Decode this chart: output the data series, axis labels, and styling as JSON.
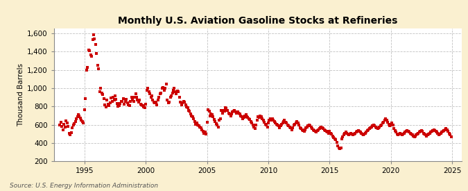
{
  "title": "Monthly U.S. Aviation Gasoline Stocks at Refineries",
  "ylabel": "Thousand Barrels",
  "source_text": "Source: U.S. Energy Information Administration",
  "fig_bg_color": "#FAF0D0",
  "plot_bg_color": "#FFFFFF",
  "marker_color": "#CC0000",
  "marker": "s",
  "markersize": 2.5,
  "ylim": [
    200,
    1650
  ],
  "yticks": [
    200,
    400,
    600,
    800,
    1000,
    1200,
    1400,
    1600
  ],
  "ytick_labels": [
    "200",
    "400",
    "600",
    "800",
    "1,000",
    "1,200",
    "1,400",
    "1,600"
  ],
  "xlim_start": 1992.5,
  "xlim_end": 2025.8,
  "xticks": [
    1995,
    2000,
    2005,
    2010,
    2015,
    2020,
    2025
  ],
  "grid_color": "#999999",
  "grid_linestyle": "--",
  "grid_alpha": 0.6,
  "title_fontsize": 10,
  "label_fontsize": 7.5,
  "tick_fontsize": 7.5,
  "source_fontsize": 6.5,
  "raw_data": [
    [
      1993.0,
      598
    ],
    [
      1993.08,
      625
    ],
    [
      1993.17,
      582
    ],
    [
      1993.25,
      548
    ],
    [
      1993.33,
      605
    ],
    [
      1993.42,
      572
    ],
    [
      1993.5,
      641
    ],
    [
      1993.58,
      618
    ],
    [
      1993.67,
      585
    ],
    [
      1993.75,
      505
    ],
    [
      1993.83,
      488
    ],
    [
      1993.92,
      512
    ],
    [
      1994.0,
      568
    ],
    [
      1994.08,
      598
    ],
    [
      1994.17,
      615
    ],
    [
      1994.25,
      638
    ],
    [
      1994.33,
      668
    ],
    [
      1994.42,
      688
    ],
    [
      1994.5,
      712
    ],
    [
      1994.58,
      695
    ],
    [
      1994.67,
      672
    ],
    [
      1994.75,
      652
    ],
    [
      1994.83,
      638
    ],
    [
      1994.92,
      618
    ],
    [
      1995.0,
      762
    ],
    [
      1995.08,
      882
    ],
    [
      1995.17,
      1195
    ],
    [
      1995.25,
      1228
    ],
    [
      1995.33,
      1418
    ],
    [
      1995.42,
      1408
    ],
    [
      1995.5,
      1362
    ],
    [
      1995.58,
      1345
    ],
    [
      1995.67,
      1528
    ],
    [
      1995.75,
      1582
    ],
    [
      1995.83,
      1538
    ],
    [
      1995.92,
      1475
    ],
    [
      1996.0,
      1378
    ],
    [
      1996.08,
      1248
    ],
    [
      1996.17,
      1215
    ],
    [
      1996.25,
      958
    ],
    [
      1996.33,
      998
    ],
    [
      1996.42,
      948
    ],
    [
      1996.5,
      928
    ],
    [
      1996.58,
      888
    ],
    [
      1996.67,
      818
    ],
    [
      1996.75,
      798
    ],
    [
      1996.83,
      868
    ],
    [
      1996.92,
      828
    ],
    [
      1997.0,
      808
    ],
    [
      1997.08,
      842
    ],
    [
      1997.17,
      892
    ],
    [
      1997.25,
      852
    ],
    [
      1997.33,
      898
    ],
    [
      1997.42,
      868
    ],
    [
      1997.5,
      918
    ],
    [
      1997.58,
      878
    ],
    [
      1997.67,
      832
    ],
    [
      1997.75,
      802
    ],
    [
      1997.83,
      812
    ],
    [
      1997.92,
      832
    ],
    [
      1998.0,
      858
    ],
    [
      1998.08,
      852
    ],
    [
      1998.17,
      888
    ],
    [
      1998.25,
      822
    ],
    [
      1998.33,
      852
    ],
    [
      1998.42,
      878
    ],
    [
      1998.5,
      842
    ],
    [
      1998.58,
      818
    ],
    [
      1998.67,
      812
    ],
    [
      1998.75,
      858
    ],
    [
      1998.83,
      898
    ],
    [
      1998.92,
      868
    ],
    [
      1999.0,
      858
    ],
    [
      1999.08,
      898
    ],
    [
      1999.17,
      938
    ],
    [
      1999.25,
      898
    ],
    [
      1999.33,
      868
    ],
    [
      1999.42,
      848
    ],
    [
      1999.5,
      868
    ],
    [
      1999.58,
      828
    ],
    [
      1999.67,
      818
    ],
    [
      1999.75,
      808
    ],
    [
      1999.83,
      798
    ],
    [
      1999.92,
      788
    ],
    [
      2000.0,
      828
    ],
    [
      2000.08,
      978
    ],
    [
      2000.17,
      998
    ],
    [
      2000.25,
      958
    ],
    [
      2000.33,
      938
    ],
    [
      2000.42,
      898
    ],
    [
      2000.5,
      918
    ],
    [
      2000.58,
      868
    ],
    [
      2000.67,
      848
    ],
    [
      2000.75,
      838
    ],
    [
      2000.83,
      848
    ],
    [
      2000.92,
      818
    ],
    [
      2001.0,
      868
    ],
    [
      2001.08,
      898
    ],
    [
      2001.17,
      938
    ],
    [
      2001.25,
      948
    ],
    [
      2001.33,
      998
    ],
    [
      2001.42,
      1008
    ],
    [
      2001.5,
      978
    ],
    [
      2001.58,
      998
    ],
    [
      2001.67,
      1048
    ],
    [
      2001.75,
      868
    ],
    [
      2001.83,
      838
    ],
    [
      2001.92,
      848
    ],
    [
      2002.0,
      898
    ],
    [
      2002.08,
      918
    ],
    [
      2002.17,
      948
    ],
    [
      2002.25,
      978
    ],
    [
      2002.33,
      998
    ],
    [
      2002.42,
      958
    ],
    [
      2002.5,
      938
    ],
    [
      2002.58,
      968
    ],
    [
      2002.67,
      958
    ],
    [
      2002.75,
      898
    ],
    [
      2002.83,
      848
    ],
    [
      2002.92,
      818
    ],
    [
      2003.0,
      838
    ],
    [
      2003.08,
      858
    ],
    [
      2003.17,
      848
    ],
    [
      2003.25,
      818
    ],
    [
      2003.33,
      798
    ],
    [
      2003.42,
      788
    ],
    [
      2003.5,
      758
    ],
    [
      2003.58,
      748
    ],
    [
      2003.67,
      718
    ],
    [
      2003.75,
      698
    ],
    [
      2003.83,
      688
    ],
    [
      2003.92,
      668
    ],
    [
      2004.0,
      638
    ],
    [
      2004.08,
      608
    ],
    [
      2004.17,
      618
    ],
    [
      2004.25,
      598
    ],
    [
      2004.33,
      588
    ],
    [
      2004.42,
      578
    ],
    [
      2004.5,
      568
    ],
    [
      2004.58,
      548
    ],
    [
      2004.67,
      528
    ],
    [
      2004.75,
      508
    ],
    [
      2004.83,
      518
    ],
    [
      2004.92,
      498
    ],
    [
      2005.0,
      628
    ],
    [
      2005.08,
      768
    ],
    [
      2005.17,
      748
    ],
    [
      2005.25,
      698
    ],
    [
      2005.33,
      722
    ],
    [
      2005.42,
      708
    ],
    [
      2005.5,
      688
    ],
    [
      2005.58,
      658
    ],
    [
      2005.67,
      632
    ],
    [
      2005.75,
      612
    ],
    [
      2005.83,
      598
    ],
    [
      2005.92,
      578
    ],
    [
      2006.0,
      648
    ],
    [
      2006.08,
      668
    ],
    [
      2006.17,
      758
    ],
    [
      2006.25,
      728
    ],
    [
      2006.33,
      758
    ],
    [
      2006.42,
      748
    ],
    [
      2006.5,
      788
    ],
    [
      2006.58,
      778
    ],
    [
      2006.67,
      758
    ],
    [
      2006.75,
      728
    ],
    [
      2006.83,
      718
    ],
    [
      2006.92,
      698
    ],
    [
      2007.0,
      718
    ],
    [
      2007.08,
      738
    ],
    [
      2007.17,
      748
    ],
    [
      2007.25,
      758
    ],
    [
      2007.33,
      738
    ],
    [
      2007.42,
      728
    ],
    [
      2007.5,
      738
    ],
    [
      2007.58,
      728
    ],
    [
      2007.67,
      718
    ],
    [
      2007.75,
      698
    ],
    [
      2007.83,
      688
    ],
    [
      2007.92,
      668
    ],
    [
      2008.0,
      678
    ],
    [
      2008.08,
      698
    ],
    [
      2008.17,
      708
    ],
    [
      2008.25,
      688
    ],
    [
      2008.33,
      678
    ],
    [
      2008.42,
      668
    ],
    [
      2008.5,
      658
    ],
    [
      2008.58,
      638
    ],
    [
      2008.67,
      618
    ],
    [
      2008.75,
      598
    ],
    [
      2008.83,
      578
    ],
    [
      2008.92,
      558
    ],
    [
      2009.0,
      598
    ],
    [
      2009.08,
      648
    ],
    [
      2009.17,
      688
    ],
    [
      2009.25,
      678
    ],
    [
      2009.33,
      698
    ],
    [
      2009.42,
      688
    ],
    [
      2009.5,
      668
    ],
    [
      2009.58,
      648
    ],
    [
      2009.67,
      628
    ],
    [
      2009.75,
      608
    ],
    [
      2009.83,
      598
    ],
    [
      2009.92,
      578
    ],
    [
      2010.0,
      618
    ],
    [
      2010.08,
      648
    ],
    [
      2010.17,
      668
    ],
    [
      2010.25,
      648
    ],
    [
      2010.33,
      668
    ],
    [
      2010.42,
      648
    ],
    [
      2010.5,
      638
    ],
    [
      2010.58,
      618
    ],
    [
      2010.67,
      608
    ],
    [
      2010.75,
      598
    ],
    [
      2010.83,
      588
    ],
    [
      2010.92,
      568
    ],
    [
      2011.0,
      588
    ],
    [
      2011.08,
      608
    ],
    [
      2011.17,
      618
    ],
    [
      2011.25,
      638
    ],
    [
      2011.33,
      648
    ],
    [
      2011.42,
      628
    ],
    [
      2011.5,
      618
    ],
    [
      2011.58,
      598
    ],
    [
      2011.67,
      588
    ],
    [
      2011.75,
      578
    ],
    [
      2011.83,
      568
    ],
    [
      2011.92,
      548
    ],
    [
      2012.0,
      568
    ],
    [
      2012.08,
      598
    ],
    [
      2012.17,
      608
    ],
    [
      2012.25,
      618
    ],
    [
      2012.33,
      638
    ],
    [
      2012.42,
      618
    ],
    [
      2012.5,
      598
    ],
    [
      2012.58,
      568
    ],
    [
      2012.67,
      558
    ],
    [
      2012.75,
      548
    ],
    [
      2012.83,
      538
    ],
    [
      2012.92,
      528
    ],
    [
      2013.0,
      548
    ],
    [
      2013.08,
      568
    ],
    [
      2013.17,
      578
    ],
    [
      2013.25,
      588
    ],
    [
      2013.33,
      598
    ],
    [
      2013.42,
      588
    ],
    [
      2013.5,
      578
    ],
    [
      2013.58,
      558
    ],
    [
      2013.67,
      548
    ],
    [
      2013.75,
      538
    ],
    [
      2013.83,
      528
    ],
    [
      2013.92,
      518
    ],
    [
      2014.0,
      538
    ],
    [
      2014.08,
      548
    ],
    [
      2014.17,
      558
    ],
    [
      2014.25,
      568
    ],
    [
      2014.33,
      578
    ],
    [
      2014.42,
      568
    ],
    [
      2014.5,
      558
    ],
    [
      2014.58,
      548
    ],
    [
      2014.67,
      538
    ],
    [
      2014.75,
      528
    ],
    [
      2014.83,
      518
    ],
    [
      2014.92,
      508
    ],
    [
      2015.0,
      528
    ],
    [
      2015.08,
      508
    ],
    [
      2015.17,
      498
    ],
    [
      2015.25,
      478
    ],
    [
      2015.33,
      458
    ],
    [
      2015.42,
      448
    ],
    [
      2015.5,
      438
    ],
    [
      2015.58,
      408
    ],
    [
      2015.67,
      368
    ],
    [
      2015.75,
      348
    ],
    [
      2015.83,
      338
    ],
    [
      2015.92,
      348
    ],
    [
      2016.0,
      448
    ],
    [
      2016.08,
      468
    ],
    [
      2016.17,
      488
    ],
    [
      2016.25,
      508
    ],
    [
      2016.33,
      518
    ],
    [
      2016.42,
      508
    ],
    [
      2016.5,
      498
    ],
    [
      2016.58,
      488
    ],
    [
      2016.67,
      498
    ],
    [
      2016.75,
      508
    ],
    [
      2016.83,
      498
    ],
    [
      2016.92,
      488
    ],
    [
      2017.0,
      498
    ],
    [
      2017.08,
      508
    ],
    [
      2017.17,
      518
    ],
    [
      2017.25,
      528
    ],
    [
      2017.33,
      538
    ],
    [
      2017.42,
      528
    ],
    [
      2017.5,
      518
    ],
    [
      2017.58,
      508
    ],
    [
      2017.67,
      498
    ],
    [
      2017.75,
      488
    ],
    [
      2017.83,
      498
    ],
    [
      2017.92,
      508
    ],
    [
      2018.0,
      518
    ],
    [
      2018.08,
      538
    ],
    [
      2018.17,
      548
    ],
    [
      2018.25,
      558
    ],
    [
      2018.33,
      568
    ],
    [
      2018.42,
      578
    ],
    [
      2018.5,
      588
    ],
    [
      2018.58,
      598
    ],
    [
      2018.67,
      588
    ],
    [
      2018.75,
      578
    ],
    [
      2018.83,
      568
    ],
    [
      2018.92,
      558
    ],
    [
      2019.0,
      568
    ],
    [
      2019.08,
      578
    ],
    [
      2019.17,
      588
    ],
    [
      2019.25,
      598
    ],
    [
      2019.33,
      618
    ],
    [
      2019.42,
      628
    ],
    [
      2019.5,
      648
    ],
    [
      2019.58,
      668
    ],
    [
      2019.67,
      648
    ],
    [
      2019.75,
      628
    ],
    [
      2019.83,
      608
    ],
    [
      2019.92,
      588
    ],
    [
      2020.0,
      598
    ],
    [
      2020.08,
      618
    ],
    [
      2020.17,
      598
    ],
    [
      2020.25,
      558
    ],
    [
      2020.33,
      538
    ],
    [
      2020.42,
      518
    ],
    [
      2020.5,
      498
    ],
    [
      2020.58,
      488
    ],
    [
      2020.67,
      498
    ],
    [
      2020.75,
      508
    ],
    [
      2020.83,
      498
    ],
    [
      2020.92,
      488
    ],
    [
      2021.0,
      498
    ],
    [
      2021.08,
      508
    ],
    [
      2021.17,
      518
    ],
    [
      2021.25,
      528
    ],
    [
      2021.33,
      538
    ],
    [
      2021.42,
      528
    ],
    [
      2021.5,
      518
    ],
    [
      2021.58,
      508
    ],
    [
      2021.67,
      498
    ],
    [
      2021.75,
      488
    ],
    [
      2021.83,
      478
    ],
    [
      2021.92,
      468
    ],
    [
      2022.0,
      478
    ],
    [
      2022.08,
      488
    ],
    [
      2022.17,
      498
    ],
    [
      2022.25,
      508
    ],
    [
      2022.33,
      518
    ],
    [
      2022.42,
      528
    ],
    [
      2022.5,
      538
    ],
    [
      2022.58,
      528
    ],
    [
      2022.67,
      508
    ],
    [
      2022.75,
      498
    ],
    [
      2022.83,
      488
    ],
    [
      2022.92,
      478
    ],
    [
      2023.0,
      488
    ],
    [
      2023.08,
      498
    ],
    [
      2023.17,
      508
    ],
    [
      2023.25,
      518
    ],
    [
      2023.33,
      528
    ],
    [
      2023.42,
      538
    ],
    [
      2023.5,
      548
    ],
    [
      2023.58,
      538
    ],
    [
      2023.67,
      528
    ],
    [
      2023.75,
      518
    ],
    [
      2023.83,
      508
    ],
    [
      2023.92,
      488
    ],
    [
      2024.0,
      498
    ],
    [
      2024.08,
      508
    ],
    [
      2024.17,
      518
    ],
    [
      2024.25,
      528
    ],
    [
      2024.33,
      538
    ],
    [
      2024.42,
      548
    ],
    [
      2024.5,
      558
    ],
    [
      2024.58,
      548
    ],
    [
      2024.67,
      528
    ],
    [
      2024.75,
      508
    ],
    [
      2024.83,
      488
    ],
    [
      2024.92,
      468
    ]
  ]
}
